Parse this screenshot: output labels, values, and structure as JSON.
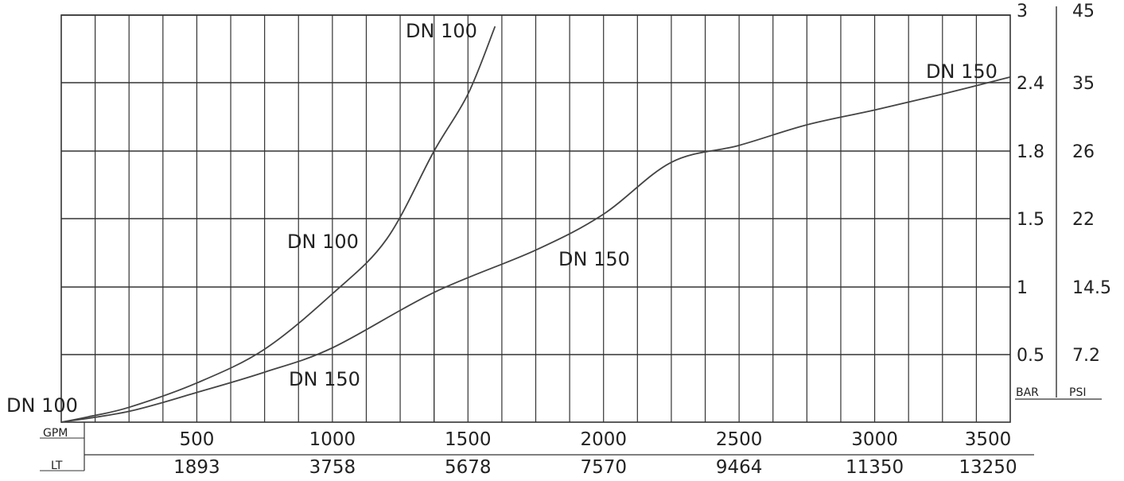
{
  "chart_data": {
    "type": "line",
    "x_axis": {
      "gpm_unit": "GPM",
      "lt_unit": "LT",
      "gpm_ticks": [
        "500",
        "1000",
        "1500",
        "2000",
        "2500",
        "3000",
        "3500"
      ],
      "lt_ticks": [
        "1893",
        "3758",
        "5678",
        "7570",
        "9464",
        "11350",
        "13250"
      ],
      "range": [
        0,
        3500
      ]
    },
    "y_axis": {
      "bar_unit": "BAR",
      "psi_unit": "PSI",
      "bar_ticks": [
        "0.5",
        "1",
        "1.5",
        "1.8",
        "2.4",
        "3"
      ],
      "psi_ticks": [
        "7.2",
        "14.5",
        "22",
        "26",
        "35",
        "45"
      ],
      "range": [
        0,
        3
      ]
    },
    "series": [
      {
        "name": "DN 100",
        "points": [
          [
            0,
            0.0
          ],
          [
            100,
            0.04
          ],
          [
            250,
            0.11
          ],
          [
            500,
            0.29
          ],
          [
            750,
            0.54
          ],
          [
            1000,
            0.95
          ],
          [
            1200,
            1.35
          ],
          [
            1375,
            1.8
          ],
          [
            1500,
            2.3
          ],
          [
            1600,
            2.9
          ]
        ]
      },
      {
        "name": "DN 150",
        "points": [
          [
            0,
            0.0
          ],
          [
            250,
            0.08
          ],
          [
            500,
            0.22
          ],
          [
            750,
            0.37
          ],
          [
            1000,
            0.55
          ],
          [
            1375,
            0.96
          ],
          [
            1750,
            1.27
          ],
          [
            2000,
            1.52
          ],
          [
            2250,
            1.75
          ],
          [
            2500,
            1.85
          ],
          [
            2750,
            2.03
          ],
          [
            3000,
            2.16
          ],
          [
            3250,
            2.3
          ],
          [
            3500,
            2.45
          ]
        ]
      }
    ],
    "annotations": [
      {
        "text": "DN 100",
        "series": 0,
        "at": "end"
      },
      {
        "text": "DN 100",
        "series": 0,
        "at": "middle"
      },
      {
        "text": "DN 100",
        "series": 0,
        "at": "start"
      },
      {
        "text": "DN 150",
        "series": 1,
        "at": "end"
      },
      {
        "text": "DN 150",
        "series": 1,
        "at": "middle"
      },
      {
        "text": "DN 150",
        "series": 1,
        "at": "start"
      }
    ],
    "grid": true
  }
}
